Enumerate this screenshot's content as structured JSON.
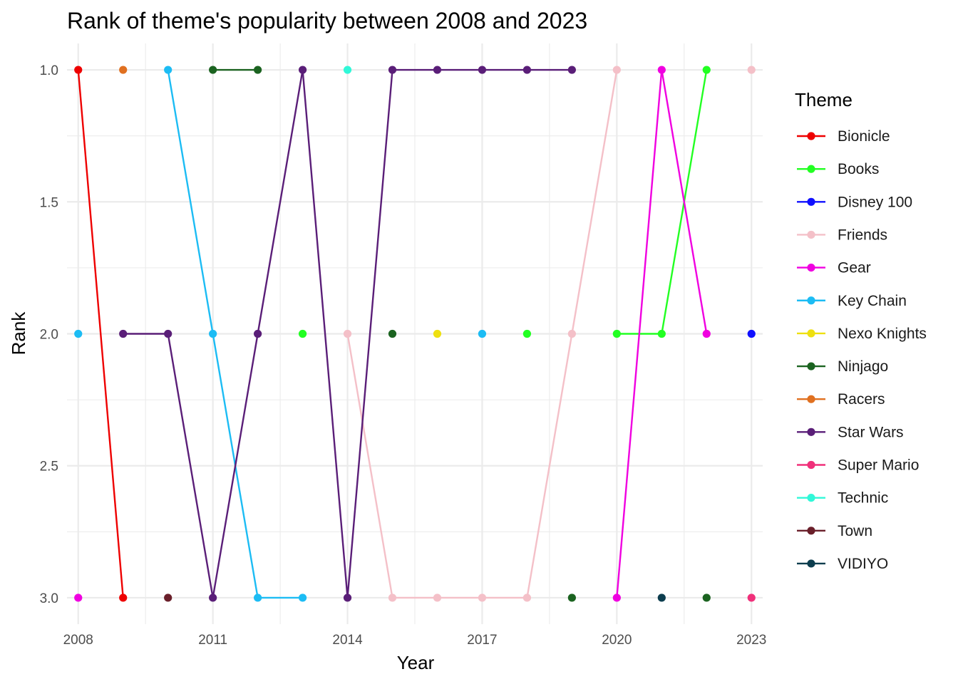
{
  "chart_data": {
    "type": "line",
    "title": "Rank of theme's popularity between 2008 and 2023",
    "xlabel": "Year",
    "ylabel": "Rank",
    "xlim": [
      2007.75,
      2023.25
    ],
    "ylim": [
      0.9,
      3.1
    ],
    "y_reversed": true,
    "x_ticks": [
      2008,
      2011,
      2014,
      2017,
      2020,
      2023
    ],
    "y_ticks": [
      1.0,
      1.5,
      2.0,
      2.5,
      3.0
    ],
    "y_tick_labels": [
      "1.0",
      "1.5",
      "2.0",
      "2.5",
      "3.0"
    ],
    "grid": true,
    "legend": {
      "title": "Theme",
      "position": "right"
    },
    "series": [
      {
        "name": "Bionicle",
        "color": "#ee0000",
        "points": [
          [
            2008,
            1
          ],
          [
            2009,
            3
          ]
        ]
      },
      {
        "name": "Books",
        "color": "#22ff22",
        "points": [
          [
            2013,
            2
          ],
          [
            2018,
            2
          ],
          [
            2020,
            2
          ],
          [
            2021,
            2
          ],
          [
            2022,
            1
          ]
        ]
      },
      {
        "name": "Disney 100",
        "color": "#1010ff",
        "points": [
          [
            2023,
            2
          ]
        ]
      },
      {
        "name": "Friends",
        "color": "#f4c0c8",
        "points": [
          [
            2014,
            2
          ],
          [
            2015,
            3
          ],
          [
            2016,
            3
          ],
          [
            2017,
            3
          ],
          [
            2018,
            3
          ],
          [
            2019,
            2
          ],
          [
            2020,
            1
          ],
          [
            2023,
            1
          ]
        ]
      },
      {
        "name": "Gear",
        "color": "#f000e0",
        "points": [
          [
            2008,
            3
          ],
          [
            2020,
            3
          ],
          [
            2021,
            1
          ],
          [
            2022,
            2
          ]
        ]
      },
      {
        "name": "Key Chain",
        "color": "#1cbcf4",
        "points": [
          [
            2008,
            2
          ],
          [
            2010,
            1
          ],
          [
            2011,
            2
          ],
          [
            2012,
            3
          ],
          [
            2013,
            3
          ],
          [
            2017,
            2
          ]
        ]
      },
      {
        "name": "Nexo Knights",
        "color": "#eee010",
        "points": [
          [
            2016,
            2
          ]
        ]
      },
      {
        "name": "Ninjago",
        "color": "#1b6320",
        "points": [
          [
            2011,
            1
          ],
          [
            2012,
            1
          ],
          [
            2015,
            2
          ],
          [
            2019,
            3
          ],
          [
            2022,
            3
          ]
        ]
      },
      {
        "name": "Racers",
        "color": "#e07020",
        "points": [
          [
            2009,
            1
          ]
        ]
      },
      {
        "name": "Star Wars",
        "color": "#5a1e78",
        "points": [
          [
            2009,
            2
          ],
          [
            2010,
            2
          ],
          [
            2011,
            3
          ],
          [
            2012,
            2
          ],
          [
            2013,
            1
          ],
          [
            2014,
            3
          ],
          [
            2015,
            1
          ],
          [
            2016,
            1
          ],
          [
            2017,
            1
          ],
          [
            2018,
            1
          ],
          [
            2019,
            1
          ]
        ]
      },
      {
        "name": "Super Mario",
        "color": "#f0307a",
        "points": [
          [
            2023,
            3
          ]
        ]
      },
      {
        "name": "Technic",
        "color": "#30f8d8",
        "points": [
          [
            2014,
            1
          ]
        ]
      },
      {
        "name": "Town",
        "color": "#6a1f2a",
        "points": [
          [
            2010,
            3
          ]
        ]
      },
      {
        "name": "VIDIYO",
        "color": "#0c3d4e",
        "points": [
          [
            2021,
            3
          ]
        ]
      }
    ],
    "connect_consecutive_years_only": true
  }
}
